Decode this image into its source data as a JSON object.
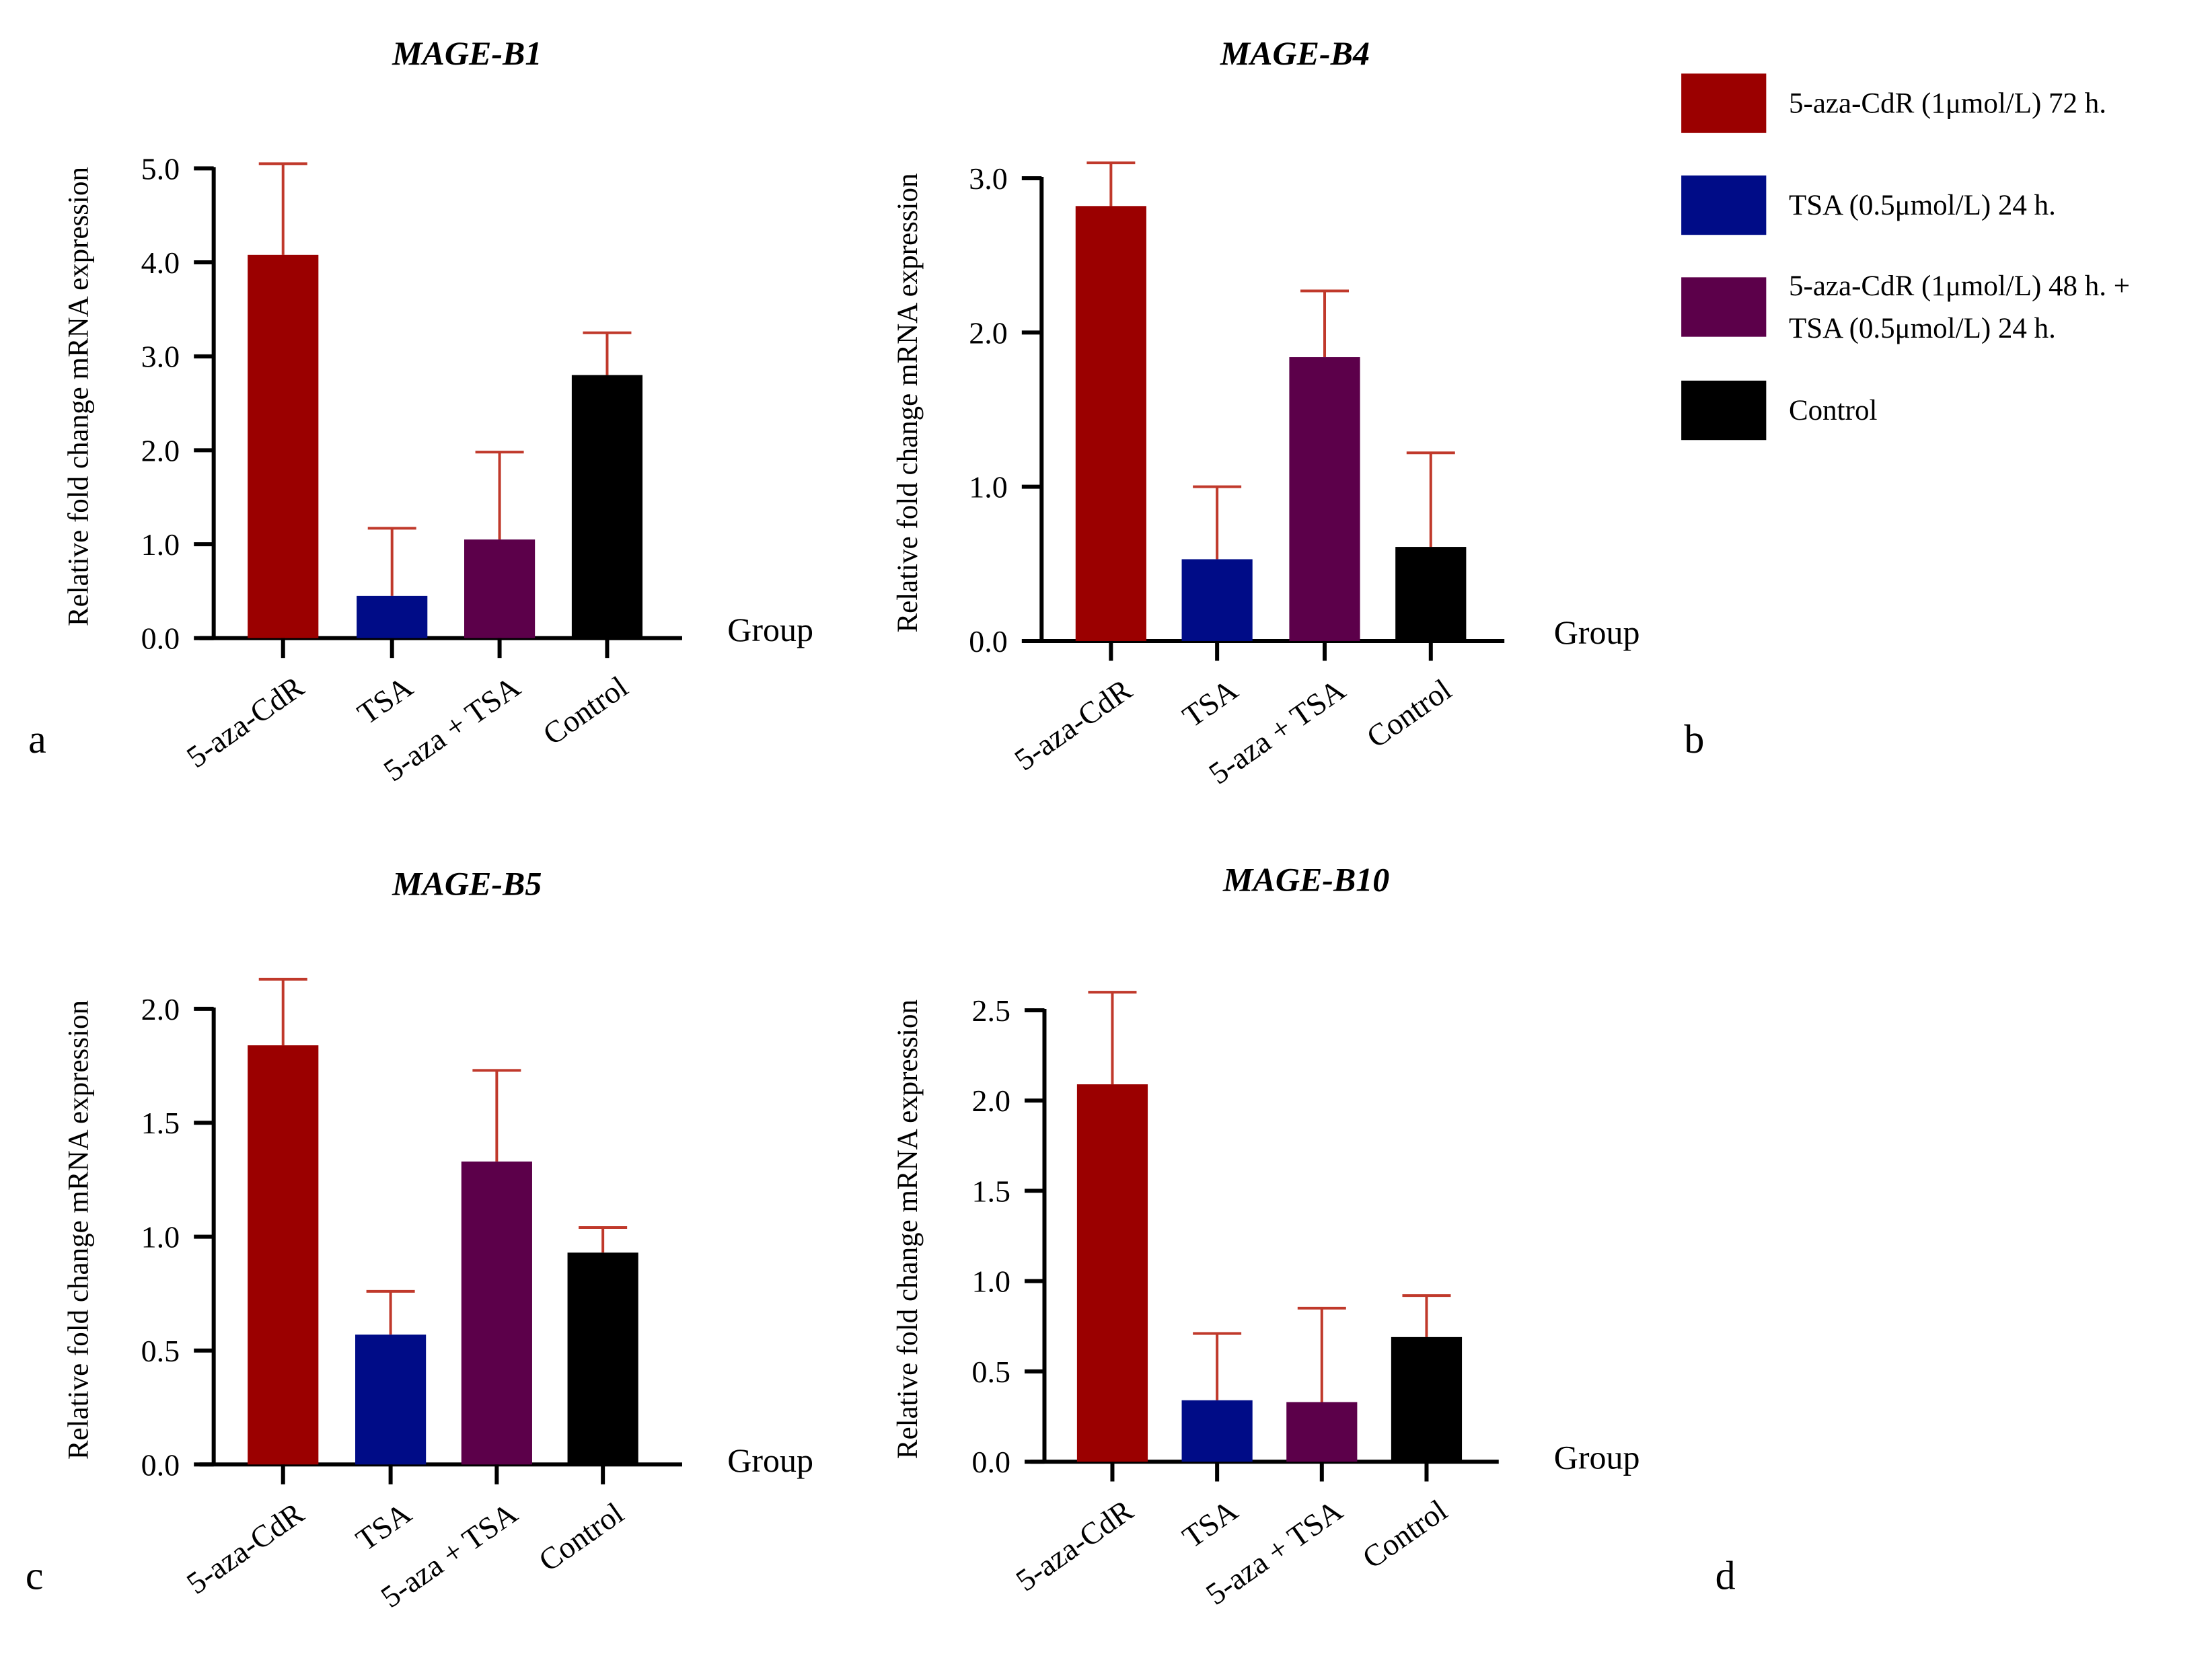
{
  "chart_data": [
    {
      "type": "bar",
      "panel_letter": "a",
      "title": "MAGE-B1",
      "ylabel": "Relative fold change mRNA expression",
      "xlabel": "Group",
      "categories": [
        "5-aza-CdR",
        "TSA",
        "5-aza + TSA",
        "Control"
      ],
      "values": [
        4.08,
        0.45,
        1.05,
        2.8
      ],
      "errors": [
        0.97,
        0.72,
        0.93,
        0.45
      ],
      "yticks": [
        "0.0",
        "1.0",
        "2.0",
        "3.0",
        "4.0",
        "5.0"
      ],
      "ylim": [
        0,
        5
      ]
    },
    {
      "type": "bar",
      "panel_letter": "b",
      "title": "MAGE-B4",
      "ylabel": "Relative fold change mRNA expression",
      "xlabel": "Group",
      "categories": [
        "5-aza-CdR",
        "TSA",
        "5-aza + TSA",
        "Control"
      ],
      "values": [
        2.82,
        0.53,
        1.84,
        0.61
      ],
      "errors": [
        0.28,
        0.47,
        0.43,
        0.61
      ],
      "yticks": [
        "0.0",
        "1.0",
        "2.0",
        "3.0"
      ],
      "ylim": [
        0,
        3
      ]
    },
    {
      "type": "bar",
      "panel_letter": "c",
      "title": "MAGE-B5",
      "ylabel": "Relative fold change mRNA expression",
      "xlabel": "Group",
      "categories": [
        "5-aza-CdR",
        "TSA",
        "5-aza + TSA",
        "Control"
      ],
      "values": [
        1.84,
        0.57,
        1.33,
        0.93
      ],
      "errors": [
        0.29,
        0.19,
        0.4,
        0.11
      ],
      "yticks": [
        "0.0",
        "0.5",
        "1.0",
        "1.5",
        "2.0"
      ],
      "ylim": [
        0,
        2
      ]
    },
    {
      "type": "bar",
      "panel_letter": "d",
      "title": "MAGE-B10",
      "ylabel": "Relative fold change mRNA expression",
      "xlabel": "Group",
      "categories": [
        "5-aza-CdR",
        "TSA",
        "5-aza + TSA",
        "Control"
      ],
      "values": [
        2.09,
        0.34,
        0.33,
        0.69
      ],
      "errors": [
        0.51,
        0.37,
        0.52,
        0.23
      ],
      "yticks": [
        "0.0",
        "0.5",
        "1.0",
        "1.5",
        "2.0",
        "2.5"
      ],
      "ylim": [
        0,
        2.5
      ]
    }
  ],
  "colors": {
    "bars": [
      "#9b0000",
      "#000c87",
      "#5c004a",
      "#000000"
    ],
    "error_bar": "#c0392b",
    "axis": "#000000"
  },
  "legend": {
    "placement": "top-right",
    "items": [
      {
        "lines": [
          "5-aza-CdR (1μmol/L) 72 h."
        ],
        "color": "#9b0000"
      },
      {
        "lines": [
          "TSA (0.5μmol/L) 24 h."
        ],
        "color": "#000c87"
      },
      {
        "lines": [
          "5-aza-CdR (1μmol/L) 48 h. +",
          "TSA (0.5μmol/L) 24 h."
        ],
        "color": "#5c004a"
      },
      {
        "lines": [
          "Control"
        ],
        "color": "#000000"
      }
    ]
  }
}
